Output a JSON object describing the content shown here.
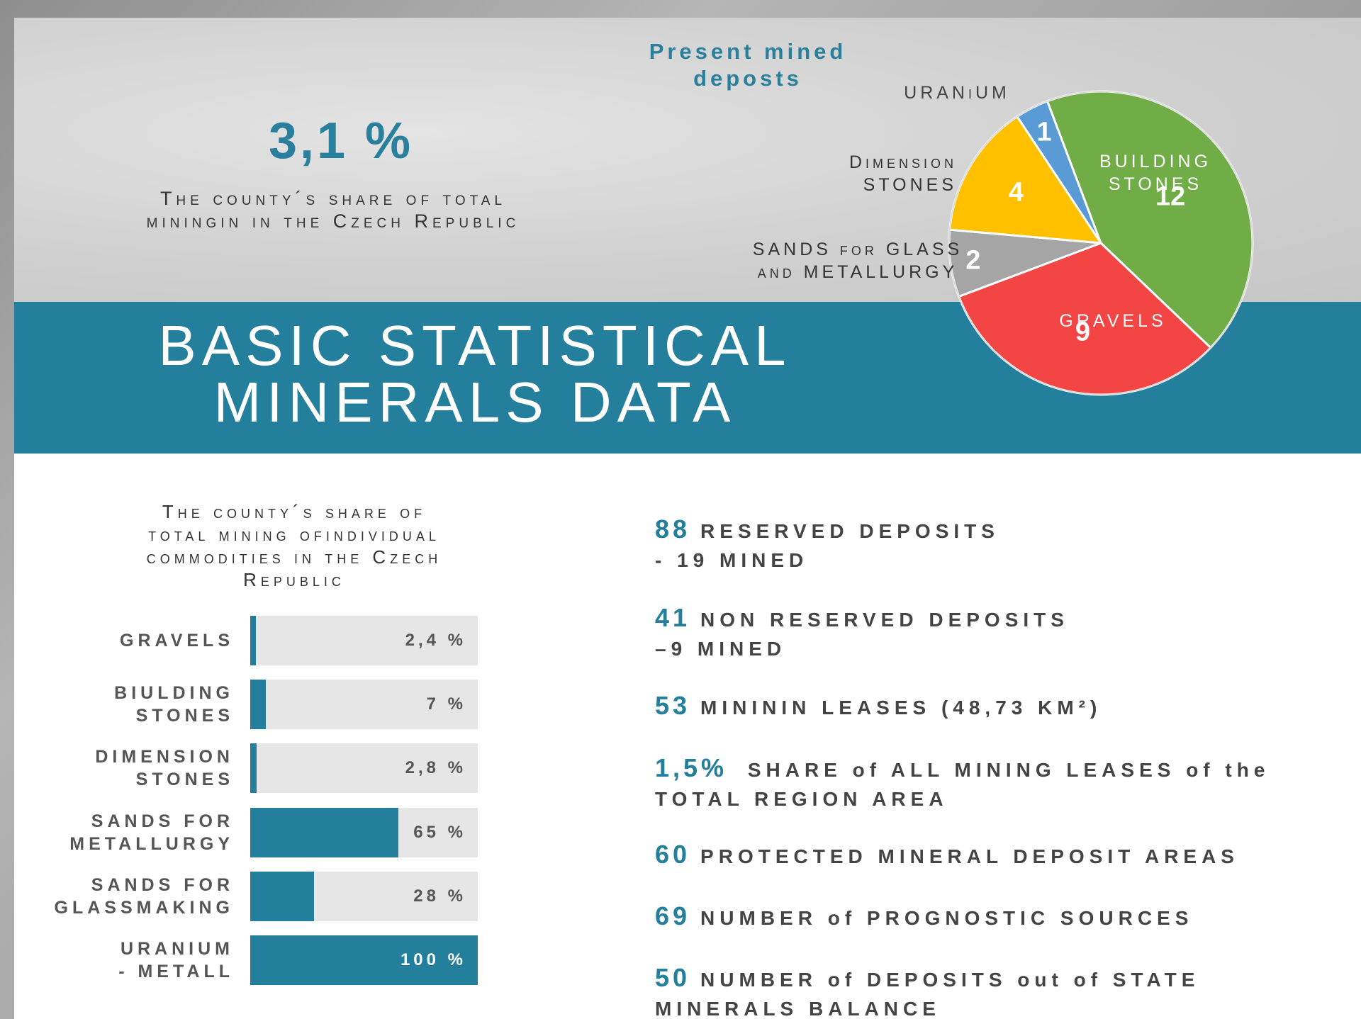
{
  "header": {
    "share_value": "3,1 %",
    "share_caption": "The county´s share of total\nminingin in the Czech Republic",
    "title": "BASIC STATISTICAL\nMINERALS DATA"
  },
  "chart_data": [
    {
      "type": "pie",
      "title": "Present mined\ndeposts",
      "categories": [
        "URANiUM",
        "BUILDING\nSTONES",
        "GRAVELS",
        "SANDS for GLASS\nand METALLURGY",
        "Dimension\nSTONES"
      ],
      "values": [
        1,
        12,
        9,
        2,
        4
      ],
      "colors": [
        "#5b9bd5",
        "#70ad47",
        "#f44545",
        "#a5a5a5",
        "#ffc000"
      ]
    },
    {
      "type": "bar",
      "title": "The county´s share of\ntotal mining ofindividual\ncommodities in the Czech\nRepublic",
      "categories": [
        "GRAVELS",
        "BIULDING\nSTONES",
        "DIMENSION\nSTONES",
        "SANDS FOR\nMETALLURGY",
        "SANDS FOR\nGLASSMAKING",
        "URANIUM\n- METALL"
      ],
      "values": [
        2.4,
        7,
        2.8,
        65,
        28,
        100
      ],
      "value_labels": [
        "2,4 %",
        "7 %",
        "2,8 %",
        "65 %",
        "28 %",
        "100 %"
      ],
      "xlim": [
        0,
        100
      ],
      "color": "#237f9b"
    }
  ],
  "stats": [
    {
      "number": "88",
      "text": "RESERVED DEPOSITS\n- 19 MINED"
    },
    {
      "number": "41",
      "text": "NON RESERVED DEPOSITS\n–9 MINED"
    },
    {
      "number": "53",
      "text": "MINININ LEASES (48,73 KM²)"
    },
    {
      "number": "1,5%",
      "text": "  SHARE of ALL MINING LEASES of the\nTOTAL REGION AREA"
    },
    {
      "number": "60",
      "text": "PROTECTED MINERAL DEPOSIT AREAS"
    },
    {
      "number": "69",
      "text": "NUMBER of PROGNOSTIC SOURCES"
    },
    {
      "number": "50",
      "text": "NUMBER of DEPOSITS out of STATE\nMINERALS BALANCE"
    }
  ]
}
